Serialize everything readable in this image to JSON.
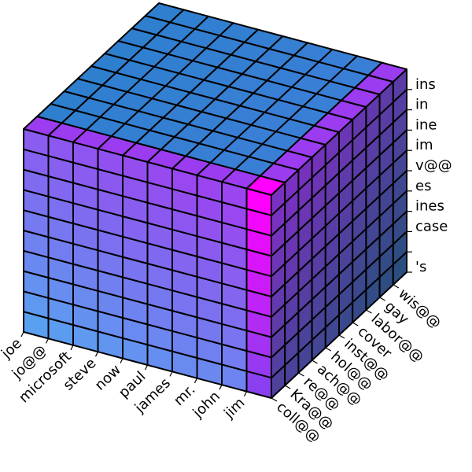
{
  "chart_data": {
    "type": "3d-voxel",
    "title": "",
    "x_labels": [
      "joe",
      "jo@@",
      "microsoft",
      "steve",
      "now",
      "paul",
      "james",
      "mr.",
      "john",
      "jim"
    ],
    "y_labels": [
      "coll@@",
      "Kra@@",
      "re@@",
      "ach@@",
      "hol@@",
      "inst@@",
      "cover",
      "labor@@",
      "gay",
      "wis@@"
    ],
    "z_labels": [
      "'s",
      "",
      "case",
      "ines",
      "es",
      "v@@",
      "im",
      "ine",
      "in",
      "ins"
    ],
    "grid": {
      "x_count": 10,
      "y_count": 10,
      "z_count": 10
    },
    "voxels": "all cells filled (10 x 10 x 10 block)",
    "colormap": {
      "top_face": [
        "#2f7fcf",
        "#4a7fe0"
      ],
      "front_face": [
        "#5aa0f0",
        "#9a45f0"
      ],
      "side_face": [
        "#2a4f7f",
        "#7a30c0"
      ],
      "highlight_corner": "#ff00ff",
      "edge_highlight": "#9b3cf0"
    }
  }
}
